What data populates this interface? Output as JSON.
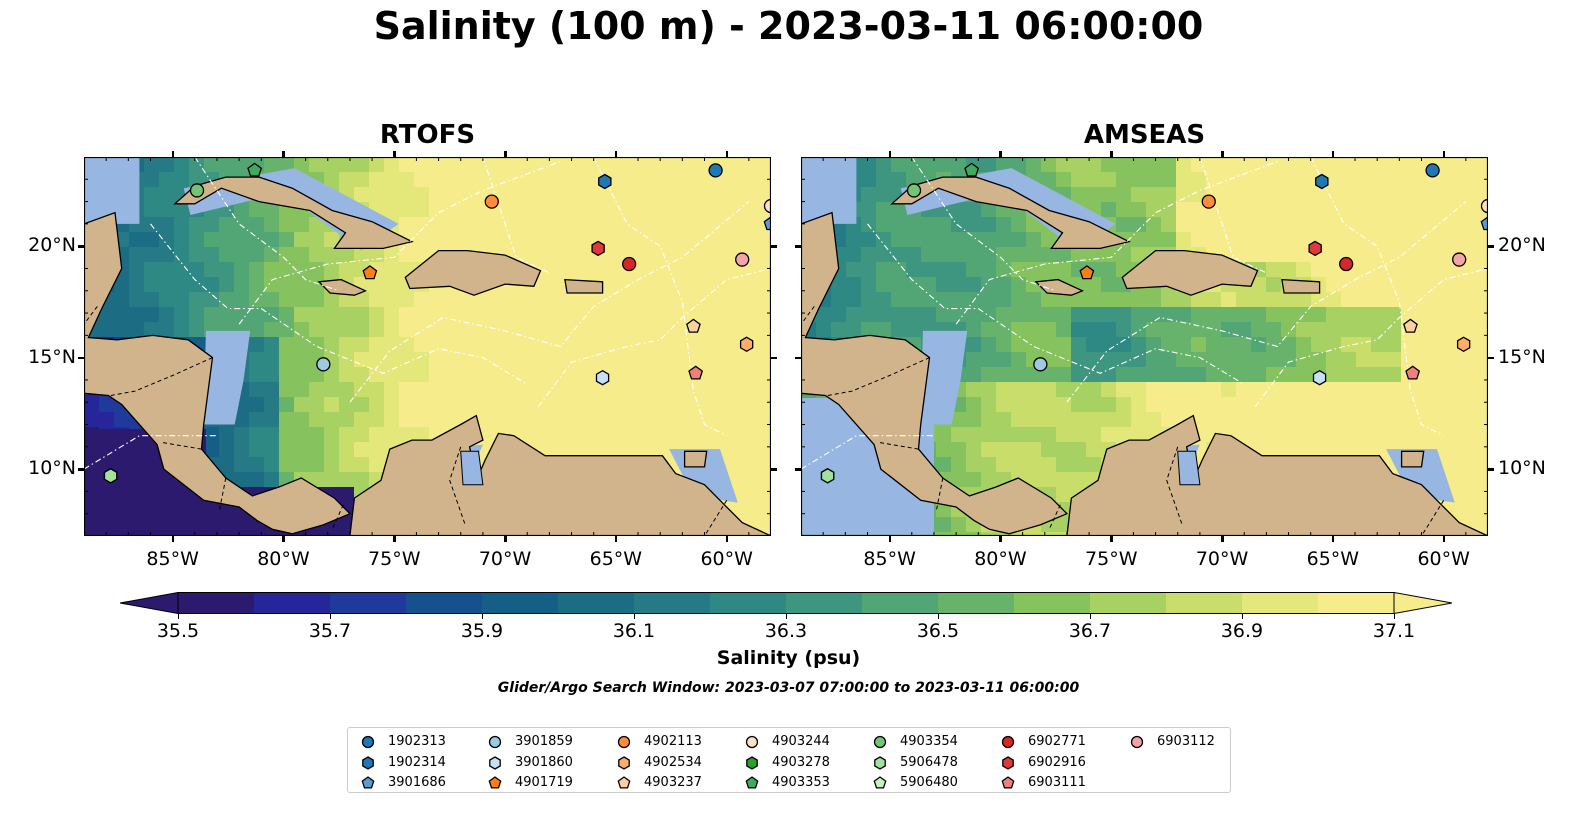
{
  "title": "Salinity (100 m) - 2023-03-11 06:00:00",
  "panels": [
    {
      "title": "RTOFS",
      "model": "rtofs"
    },
    {
      "title": "AMSEAS",
      "model": "amseas"
    }
  ],
  "map": {
    "lon_range": [
      -89,
      -58
    ],
    "lat_range": [
      7,
      24
    ],
    "lon_ticks": [
      {
        "value": -85,
        "label": "85°W"
      },
      {
        "value": -80,
        "label": "80°W"
      },
      {
        "value": -75,
        "label": "75°W"
      },
      {
        "value": -70,
        "label": "70°W"
      },
      {
        "value": -65,
        "label": "65°W"
      },
      {
        "value": -60,
        "label": "60°W"
      }
    ],
    "lat_ticks": [
      {
        "value": 20,
        "label": "20°N"
      },
      {
        "value": 15,
        "label": "15°N"
      },
      {
        "value": 10,
        "label": "10°N"
      }
    ],
    "land_color": "#d2b48c",
    "shallow_color": "#97b6e1"
  },
  "colorbar": {
    "label": "Salinity (psu)",
    "min": 35.5,
    "max": 37.1,
    "ticks": [
      "35.5",
      "35.7",
      "35.9",
      "36.1",
      "36.3",
      "36.5",
      "36.7",
      "36.9",
      "37.1"
    ],
    "colors": [
      "#2c1a6e",
      "#26259a",
      "#1f3a9c",
      "#17508f",
      "#155f86",
      "#1c6c84",
      "#257a86",
      "#2e8884",
      "#3e9680",
      "#52a574",
      "#67b36c",
      "#86c35e",
      "#a7d163",
      "#c8dd6a",
      "#e4e77a",
      "#f6ec8c"
    ]
  },
  "search_window": "Glider/Argo Search Window: 2023-03-07 07:00:00 to 2023-03-11 06:00:00",
  "legend": [
    {
      "id": "1902313",
      "marker": "circle",
      "color": "#1f77b4"
    },
    {
      "id": "1902314",
      "marker": "hexagon",
      "color": "#1f77b4"
    },
    {
      "id": "3901686",
      "marker": "pentagon",
      "color": "#5b9bd5"
    },
    {
      "id": "3901859",
      "marker": "circle",
      "color": "#9ecae1"
    },
    {
      "id": "3901860",
      "marker": "hexagon",
      "color": "#c6e0f5"
    },
    {
      "id": "4901719",
      "marker": "pentagon",
      "color": "#ff7f0e"
    },
    {
      "id": "4902113",
      "marker": "circle",
      "color": "#fd8d3c"
    },
    {
      "id": "4902534",
      "marker": "hexagon",
      "color": "#fdae6b"
    },
    {
      "id": "4903237",
      "marker": "pentagon",
      "color": "#fdd0a2"
    },
    {
      "id": "4903244",
      "marker": "circle",
      "color": "#fde0c5"
    },
    {
      "id": "4903278",
      "marker": "hexagon",
      "color": "#2ca02c"
    },
    {
      "id": "4903353",
      "marker": "pentagon",
      "color": "#41ab5d"
    },
    {
      "id": "4903354",
      "marker": "circle",
      "color": "#74c476"
    },
    {
      "id": "5906478",
      "marker": "hexagon",
      "color": "#a1e39b"
    },
    {
      "id": "5906480",
      "marker": "pentagon",
      "color": "#c7f2c0"
    },
    {
      "id": "6902771",
      "marker": "circle",
      "color": "#d62728"
    },
    {
      "id": "6902916",
      "marker": "hexagon",
      "color": "#e0393b"
    },
    {
      "id": "6903111",
      "marker": "pentagon",
      "color": "#f08080"
    },
    {
      "id": "6903112",
      "marker": "circle",
      "color": "#f4a3a8"
    }
  ],
  "floats": [
    {
      "id": "1902313",
      "lon": -60.5,
      "lat": 23.4
    },
    {
      "id": "1902314",
      "lon": -65.5,
      "lat": 22.9
    },
    {
      "id": "3901686",
      "lon": -58.0,
      "lat": 21.0
    },
    {
      "id": "3901859",
      "lon": -78.2,
      "lat": 14.7
    },
    {
      "id": "3901860",
      "lon": -65.6,
      "lat": 14.1
    },
    {
      "id": "4901719",
      "lon": -76.1,
      "lat": 18.8
    },
    {
      "id": "4902113",
      "lon": -70.6,
      "lat": 22.0
    },
    {
      "id": "4902534",
      "lon": -59.1,
      "lat": 15.6
    },
    {
      "id": "4903237",
      "lon": -61.5,
      "lat": 16.4
    },
    {
      "id": "4903244",
      "lon": -58.0,
      "lat": 21.8
    },
    {
      "id": "4903278",
      "lon": -87.8,
      "lat": 9.7
    },
    {
      "id": "4903353",
      "lon": -81.3,
      "lat": 23.4
    },
    {
      "id": "4903354",
      "lon": -83.9,
      "lat": 22.5
    },
    {
      "id": "5906478",
      "lon": -87.8,
      "lat": 9.7
    },
    {
      "id": "6902771",
      "lon": -64.4,
      "lat": 19.2
    },
    {
      "id": "6902916",
      "lon": -65.8,
      "lat": 19.9
    },
    {
      "id": "6903111",
      "lon": -61.4,
      "lat": 14.3
    },
    {
      "id": "6903112",
      "lon": -59.3,
      "lat": 19.4
    }
  ]
}
